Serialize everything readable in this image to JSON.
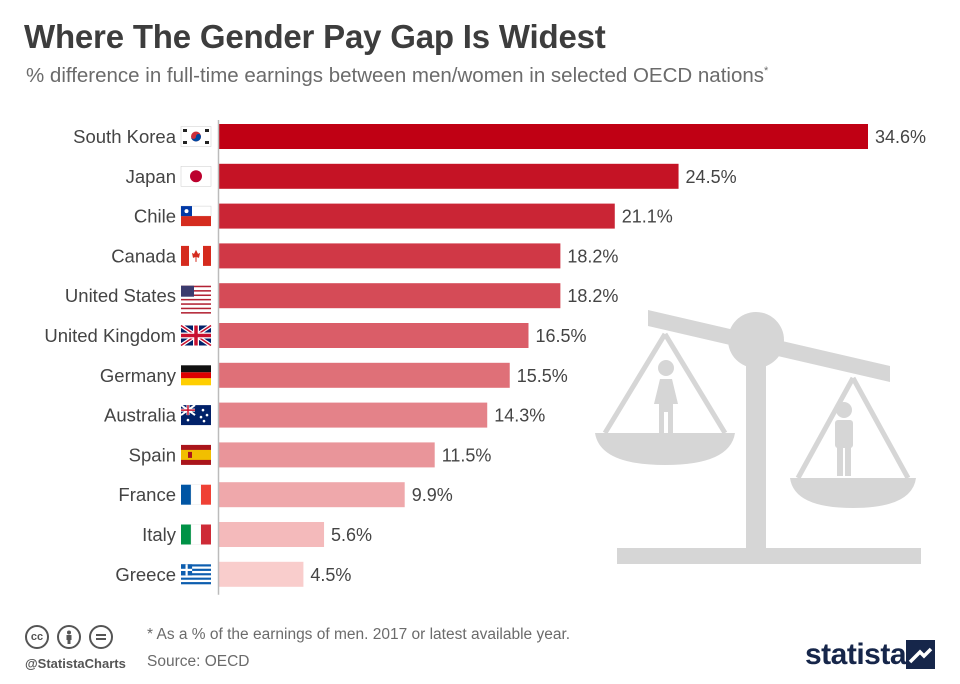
{
  "title": "Where The Gender Pay Gap Is Widest",
  "subtitle": "% difference in full-time earnings between men/women in selected OECD nations",
  "subtitle_marker": "*",
  "footnote": "* As a % of the earnings of men. 2017 or latest available year.",
  "source": "Source: OECD",
  "handle": "@StatistaCharts",
  "brand": "statista",
  "colors": {
    "bar_dark": "#c00014",
    "bar_light": "#f9cdcc",
    "axis": "#bbbbbb",
    "illustration": "#d6d6d6",
    "brand": "#16264a"
  },
  "icons": [
    "creative-commons-icon",
    "attribution-icon",
    "no-derivatives-icon",
    "scale-icon",
    "woman-icon",
    "man-icon"
  ],
  "chart_data": {
    "type": "bar",
    "orientation": "horizontal",
    "categories": [
      "South Korea",
      "Japan",
      "Chile",
      "Canada",
      "United States",
      "United Kingdom",
      "Germany",
      "Australia",
      "Spain",
      "France",
      "Italy",
      "Greece"
    ],
    "values": [
      34.6,
      24.5,
      21.1,
      18.2,
      18.2,
      16.5,
      15.5,
      14.3,
      11.5,
      9.9,
      5.6,
      4.5
    ],
    "value_labels": [
      "34.6%",
      "24.5%",
      "21.1%",
      "18.2%",
      "18.2%",
      "16.5%",
      "15.5%",
      "14.3%",
      "11.5%",
      "9.9%",
      "5.6%",
      "4.5%"
    ],
    "flags": [
      "south-korea-flag-icon",
      "japan-flag-icon",
      "chile-flag-icon",
      "canada-flag-icon",
      "united-states-flag-icon",
      "united-kingdom-flag-icon",
      "germany-flag-icon",
      "australia-flag-icon",
      "spain-flag-icon",
      "france-flag-icon",
      "italy-flag-icon",
      "greece-flag-icon"
    ],
    "unit": "%",
    "xlim": [
      0,
      34.6
    ],
    "grid": false,
    "legend": "none"
  }
}
